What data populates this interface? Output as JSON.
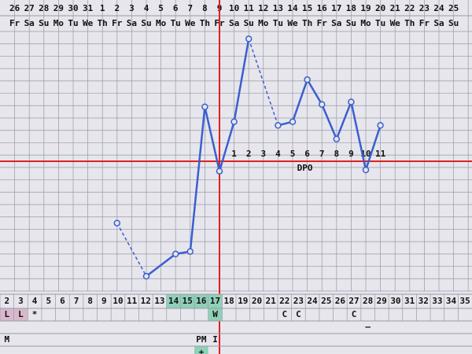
{
  "chart_data": {
    "type": "line",
    "header_dates": [
      "26",
      "27",
      "28",
      "29",
      "30",
      "31",
      "1",
      "2",
      "3",
      "4",
      "5",
      "6",
      "7",
      "8",
      "9",
      "10",
      "11",
      "12",
      "13",
      "14",
      "15",
      "16",
      "17",
      "18",
      "19",
      "20",
      "21",
      "22",
      "23",
      "24",
      "25"
    ],
    "weekdays": [
      "Fr",
      "Sa",
      "Su",
      "Mo",
      "Tu",
      "We",
      "Th",
      "Fr",
      "Sa",
      "Su",
      "Mo",
      "Tu",
      "We",
      "Th",
      "Fr",
      "Sa",
      "Su",
      "Mo",
      "Tu",
      "We",
      "Th",
      "Fr",
      "Sa",
      "Su",
      "Mo",
      "Tu",
      "We",
      "Th",
      "Fr",
      "Sa",
      "Su"
    ],
    "x": [
      10,
      11,
      12,
      14,
      15,
      16,
      17,
      18,
      19,
      20,
      21,
      22,
      23,
      24,
      25,
      26,
      27,
      28
    ],
    "series": [
      {
        "color": "#3a5fd0",
        "values": [
          5.5,
          null,
          1.2,
          3.0,
          3.2,
          14.9,
          9.7,
          13.7,
          20.4,
          null,
          13.4,
          13.7,
          17.1,
          15.1,
          12.3,
          15.3,
          9.8,
          13.4
        ]
      }
    ],
    "ylim": [
      0,
      21
    ],
    "coverline": 10.5,
    "ovulation_day": 17,
    "dpo_labels": [
      "1",
      "2",
      "3",
      "4",
      "5",
      "6",
      "7",
      "8",
      "9",
      "10",
      "11"
    ],
    "dpo_title": "DPO",
    "cycle_days": [
      "2",
      "3",
      "4",
      "5",
      "6",
      "7",
      "8",
      "9",
      "10",
      "11",
      "12",
      "13",
      "14",
      "15",
      "16",
      "17",
      "18",
      "19",
      "20",
      "21",
      "22",
      "23",
      "24",
      "25",
      "26",
      "27",
      "28",
      "29",
      "30",
      "31",
      "32",
      "33",
      "34",
      "35"
    ],
    "fertile_days": [
      "14",
      "15",
      "16",
      "17"
    ],
    "rows": [
      [
        {
          "day": "2",
          "text": "L"
        },
        {
          "day": "3",
          "text": "L"
        },
        {
          "day": "4",
          "text": "*"
        },
        {
          "day": "17",
          "text": "W"
        },
        {
          "day": "22",
          "text": "C"
        },
        {
          "day": "23",
          "text": "C"
        },
        {
          "day": "27",
          "text": "C"
        }
      ],
      [
        {
          "day": "28",
          "text": "—"
        }
      ],
      [
        {
          "day": "2",
          "text": "M"
        },
        {
          "day": "16",
          "text": "PM"
        },
        {
          "day": "17",
          "text": "I"
        }
      ],
      [
        {
          "day": "16",
          "text": "+"
        }
      ]
    ]
  }
}
